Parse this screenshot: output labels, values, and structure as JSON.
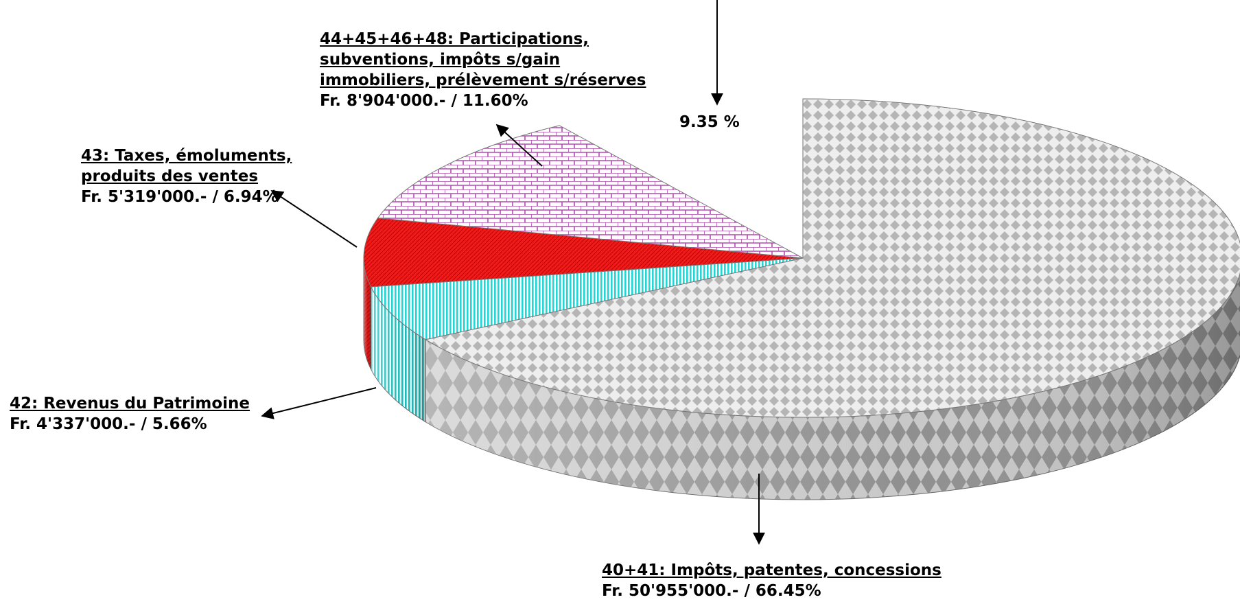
{
  "chart_data": {
    "type": "pie",
    "title": "",
    "slices": [
      {
        "label": "40+41: Impôts, patentes, concessions",
        "value_text": "Fr. 50'955'000.- / 66.45%",
        "percent": 66.45,
        "color": "#c0c0c0",
        "pattern": "diamond-grey"
      },
      {
        "label": "42: Revenus du Patrimoine",
        "value_text": "Fr. 4'337'000.- / 5.66%",
        "percent": 5.66,
        "color": "#33e0e0",
        "pattern": "vertical-stripes-cyan"
      },
      {
        "label": "43: Taxes, émoluments, produits des ventes",
        "value_text": "Fr. 5'319'000.- / 6.94%",
        "percent": 6.94,
        "color": "#ee1c1c",
        "pattern": "solid-red"
      },
      {
        "label": "44+45+46+48: Participations, subventions, impôts s/gain immobiliers, prélèvement s/réserves",
        "value_text": "Fr. 8'904'000.- / 11.60%",
        "percent": 11.6,
        "color": "#cc66cc",
        "pattern": "brick-purple"
      },
      {
        "label": "",
        "value_text": "9.35 %",
        "percent": 9.35,
        "color": "#ffffff",
        "pattern": "exploded-missing"
      }
    ],
    "legend": "none",
    "style": "3d-exploded"
  },
  "labels": {
    "s0_title": "40+41: Impôts, patentes, concessions",
    "s0_value": "Fr. 50'955'000.- / 66.45%",
    "s1_title": "42: Revenus du Patrimoine",
    "s1_value": "Fr. 4'337'000.- / 5.66%",
    "s2_title_1": "43: Taxes, émoluments,",
    "s2_title_2": "produits des ventes",
    "s2_value": "Fr. 5'319'000.- / 6.94%",
    "s3_title_1": "44+45+46+48: Participations,",
    "s3_title_2": "subventions, impôts s/gain",
    "s3_title_3": "immobiliers, prélèvement s/réserves",
    "s3_value": "Fr. 8'904'000.- / 11.60%",
    "s4_value": "9.35 %"
  }
}
